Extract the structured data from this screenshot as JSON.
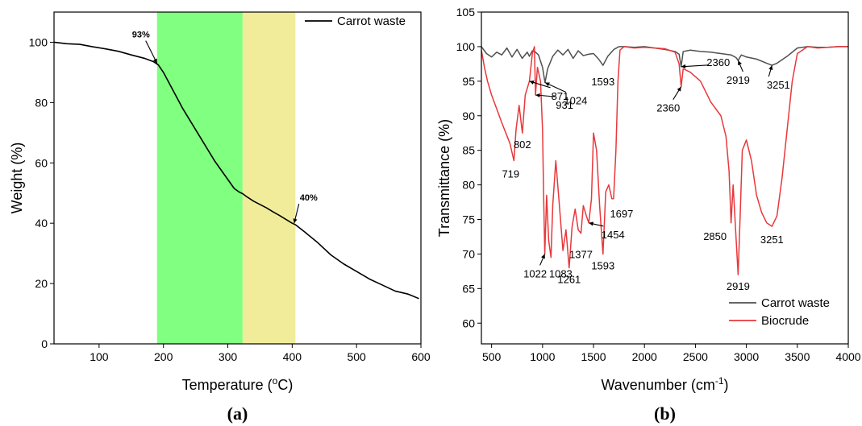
{
  "chart_data": [
    {
      "type": "line",
      "panel_label": "(a)",
      "xlabel_prefix": "Temperature (",
      "xlabel_sup": "o",
      "xlabel_suffix": "C)",
      "ylabel": "Weight (%)",
      "xlim": [
        30,
        600
      ],
      "ylim": [
        0,
        110
      ],
      "xticks": [
        100,
        200,
        300,
        400,
        500,
        600
      ],
      "yticks": [
        0,
        20,
        40,
        60,
        80,
        100
      ],
      "legend_position": "top-right",
      "grid": false,
      "bands": [
        {
          "from": 190,
          "to": 323,
          "color": "#80ff80"
        },
        {
          "from": 323,
          "to": 405,
          "color": "#f0ec9a"
        }
      ],
      "series": [
        {
          "name": "Carrot waste",
          "color": "#000000",
          "x": [
            30,
            50,
            70,
            90,
            110,
            130,
            150,
            170,
            185,
            192,
            200,
            210,
            220,
            230,
            240,
            250,
            260,
            270,
            280,
            290,
            300,
            310,
            318,
            323,
            330,
            340,
            350,
            360,
            370,
            380,
            390,
            400,
            405,
            420,
            440,
            460,
            480,
            500,
            520,
            540,
            560,
            580,
            597
          ],
          "y": [
            100,
            99.5,
            99.3,
            98.5,
            97.8,
            97,
            95.8,
            94.7,
            93.5,
            92.5,
            90,
            86,
            82,
            78,
            74.5,
            71,
            67.5,
            64,
            60.5,
            57.5,
            54.5,
            51.5,
            50.3,
            49.8,
            48.7,
            47.3,
            46.2,
            45.1,
            43.8,
            42.6,
            41.3,
            40,
            39.5,
            37,
            33.5,
            29.5,
            26.5,
            24,
            21.5,
            19.5,
            17.5,
            16.5,
            15
          ]
        }
      ],
      "annotations": [
        {
          "text": "93%",
          "x": 190,
          "y": 93,
          "dx": -20,
          "dy": -32
        },
        {
          "text": "40%",
          "x": 403,
          "y": 40,
          "dx": 18,
          "dy": -28
        }
      ]
    },
    {
      "type": "line",
      "panel_label": "(b)",
      "xlabel_prefix": "Wavenumber (cm",
      "xlabel_sup": "-1",
      "xlabel_suffix": ")",
      "ylabel": "Transmittance (%)",
      "xlim": [
        400,
        4000
      ],
      "ylim": [
        57,
        105
      ],
      "xticks": [
        500,
        1000,
        1500,
        2000,
        2500,
        3000,
        3500,
        4000
      ],
      "yticks": [
        60,
        65,
        70,
        75,
        80,
        85,
        90,
        95,
        100,
        105
      ],
      "legend_position": "bottom-right",
      "grid": false,
      "series": [
        {
          "name": "Carrot waste",
          "color": "#505050",
          "x": [
            400,
            450,
            500,
            550,
            600,
            650,
            700,
            750,
            800,
            850,
            871,
            900,
            931,
            960,
            1000,
            1024,
            1050,
            1100,
            1150,
            1200,
            1250,
            1300,
            1350,
            1400,
            1450,
            1500,
            1550,
            1593,
            1640,
            1700,
            1750,
            1800,
            1900,
            2000,
            2100,
            2200,
            2300,
            2340,
            2360,
            2380,
            2450,
            2550,
            2650,
            2750,
            2850,
            2900,
            2919,
            2950,
            3000,
            3100,
            3200,
            3251,
            3300,
            3400,
            3500,
            3600,
            3700,
            3800,
            3900,
            4000
          ],
          "y": [
            100,
            99,
            98.5,
            99.2,
            98.8,
            99.8,
            98.5,
            99.6,
            98.3,
            99.2,
            98.6,
            99.4,
            99.2,
            98.8,
            97,
            94.8,
            96.8,
            98.6,
            99.5,
            98.8,
            99.6,
            98.3,
            99.4,
            98.7,
            98.9,
            99,
            98.2,
            97.3,
            98.6,
            99.6,
            100,
            100,
            99.9,
            100,
            99.8,
            99.6,
            99.3,
            98.9,
            97.1,
            99.3,
            99.5,
            99.3,
            99.2,
            99,
            98.8,
            98.4,
            98,
            98.8,
            98.5,
            98.2,
            97.6,
            97.3,
            97.6,
            98.6,
            99.8,
            100,
            99.9,
            99.9,
            100,
            100
          ]
        },
        {
          "name": "Biocrude",
          "color": "#e8383b",
          "x": [
            400,
            430,
            460,
            500,
            550,
            600,
            640,
            680,
            719,
            740,
            770,
            802,
            830,
            871,
            900,
            920,
            931,
            950,
            980,
            1000,
            1010,
            1022,
            1040,
            1060,
            1083,
            1100,
            1130,
            1160,
            1200,
            1230,
            1261,
            1290,
            1320,
            1350,
            1377,
            1400,
            1430,
            1454,
            1480,
            1500,
            1530,
            1560,
            1593,
            1620,
            1650,
            1680,
            1697,
            1720,
            1740,
            1760,
            1800,
            1900,
            2000,
            2100,
            2200,
            2300,
            2340,
            2360,
            2380,
            2450,
            2550,
            2650,
            2750,
            2800,
            2830,
            2850,
            2870,
            2900,
            2919,
            2940,
            2960,
            3000,
            3050,
            3100,
            3150,
            3200,
            3251,
            3300,
            3350,
            3400,
            3450,
            3500,
            3550,
            3600,
            3700,
            3800,
            3900,
            4000
          ],
          "y": [
            99.5,
            97,
            95,
            93,
            91,
            89,
            87.5,
            86,
            83.5,
            88,
            91.5,
            87.5,
            93,
            95,
            99,
            100,
            93,
            97,
            95,
            88,
            79,
            70,
            78.5,
            72,
            69.5,
            77,
            83.5,
            78,
            70.5,
            73.5,
            68,
            74,
            76.5,
            73.5,
            73,
            77,
            75.5,
            74.5,
            78,
            87.5,
            85,
            77,
            70,
            79,
            80,
            78,
            78,
            85,
            95,
            99.5,
            100,
            99.8,
            99.9,
            99.8,
            99.7,
            99.2,
            97.5,
            94.2,
            96.8,
            96.3,
            95,
            92,
            90,
            87,
            82,
            74.5,
            80,
            72,
            67,
            76,
            85,
            86.5,
            83.5,
            78.5,
            76,
            74.5,
            74,
            75.5,
            81,
            88,
            95,
            99,
            99.5,
            100,
            99.8,
            99.9,
            100,
            100
          ]
        }
      ],
      "annotations": [
        {
          "text": "1024",
          "x": 1024,
          "y": 94.8,
          "dx": 38,
          "dy": 22,
          "arrow": true
        },
        {
          "text": "871",
          "x": 871,
          "y": 95,
          "dx": 38,
          "dy": 18,
          "arrow": true
        },
        {
          "text": "931",
          "x": 931,
          "y": 93,
          "dx": 36,
          "dy": 12,
          "arrow": true
        },
        {
          "text": "802",
          "x": 802,
          "y": 87.5,
          "dx": 0,
          "dy": 14,
          "arrow": false
        },
        {
          "text": "719",
          "x": 719,
          "y": 83.5,
          "dx": -4,
          "dy": 16,
          "arrow": false
        },
        {
          "text": "1593",
          "x": 1593,
          "y": 97.3,
          "dx": 0,
          "dy": 20,
          "arrow": false
        },
        {
          "text": "2360",
          "x": 2360,
          "y": 97.1,
          "dx": 46,
          "dy": -6,
          "arrow": true
        },
        {
          "text": "2360",
          "x": 2360,
          "y": 94.2,
          "dx": -16,
          "dy": 26,
          "arrow": true
        },
        {
          "text": "2919",
          "x": 2919,
          "y": 98,
          "dx": 0,
          "dy": 24,
          "arrow": true
        },
        {
          "text": "3251",
          "x": 3251,
          "y": 97.3,
          "dx": 8,
          "dy": 24,
          "arrow": true
        },
        {
          "text": "1697",
          "x": 1697,
          "y": 78,
          "dx": 10,
          "dy": 18,
          "arrow": false
        },
        {
          "text": "1454",
          "x": 1454,
          "y": 74.5,
          "dx": 30,
          "dy": 14,
          "arrow": true
        },
        {
          "text": "1377",
          "x": 1377,
          "y": 73,
          "dx": 0,
          "dy": 26,
          "arrow": false
        },
        {
          "text": "1593",
          "x": 1593,
          "y": 70,
          "dx": 0,
          "dy": 14,
          "arrow": false
        },
        {
          "text": "1022",
          "x": 1022,
          "y": 70,
          "dx": -12,
          "dy": 24,
          "arrow": true
        },
        {
          "text": "1083",
          "x": 1083,
          "y": 69.5,
          "dx": 12,
          "dy": 20,
          "arrow": false
        },
        {
          "text": "1261",
          "x": 1261,
          "y": 68,
          "dx": 0,
          "dy": 14,
          "arrow": false
        },
        {
          "text": "2850",
          "x": 2850,
          "y": 74.5,
          "dx": -20,
          "dy": 16,
          "arrow": false
        },
        {
          "text": "2919",
          "x": 2919,
          "y": 67,
          "dx": 0,
          "dy": 14,
          "arrow": false
        },
        {
          "text": "3251",
          "x": 3251,
          "y": 74,
          "dx": 0,
          "dy": 16,
          "arrow": false
        }
      ]
    }
  ]
}
